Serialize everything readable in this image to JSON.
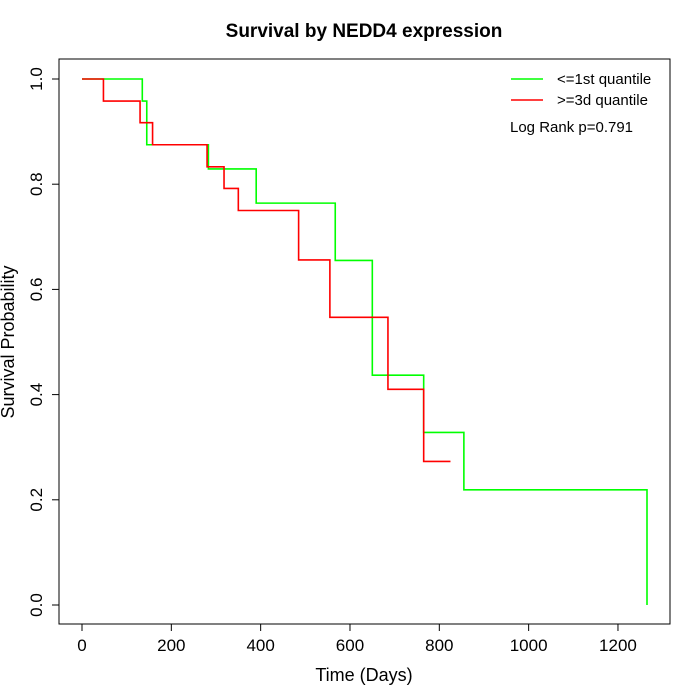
{
  "chart_data": {
    "type": "line",
    "step": true,
    "title": "Survival by NEDD4 expression",
    "xlabel": "Time (Days)",
    "ylabel": "Survival Probability",
    "xlim": [
      0,
      1265
    ],
    "ylim": [
      0,
      1.0
    ],
    "x_ticks": [
      0,
      200,
      400,
      600,
      800,
      1000,
      1200
    ],
    "y_ticks": [
      0.0,
      0.2,
      0.4,
      0.6,
      0.8,
      1.0
    ],
    "x_tick_labels": [
      "0",
      "200",
      "400",
      "600",
      "800",
      "1000",
      "1200"
    ],
    "y_tick_labels": [
      "0.0",
      "0.2",
      "0.4",
      "0.6",
      "0.8",
      "1.0"
    ],
    "grid": false,
    "legend_position": "top-right",
    "annotation": "Log Rank p=0.791",
    "series": [
      {
        "name": "<=1st quantile",
        "color": "#00ff00",
        "x": [
          0,
          112,
          135,
          145,
          280,
          283,
          390,
          555,
          567,
          650,
          765,
          855,
          1265,
          1265
        ],
        "y": [
          1.0,
          1.0,
          0.958,
          0.875,
          0.875,
          0.829,
          0.764,
          0.764,
          0.655,
          0.437,
          0.328,
          0.219,
          0.219,
          0.0
        ]
      },
      {
        "name": ">=3d quantile",
        "color": "#ff0000",
        "x": [
          0,
          48,
          130,
          158,
          280,
          318,
          350,
          485,
          555,
          685,
          765,
          825
        ],
        "y": [
          1.0,
          0.958,
          0.917,
          0.875,
          0.833,
          0.792,
          0.75,
          0.656,
          0.547,
          0.41,
          0.273,
          0.273
        ]
      }
    ]
  }
}
